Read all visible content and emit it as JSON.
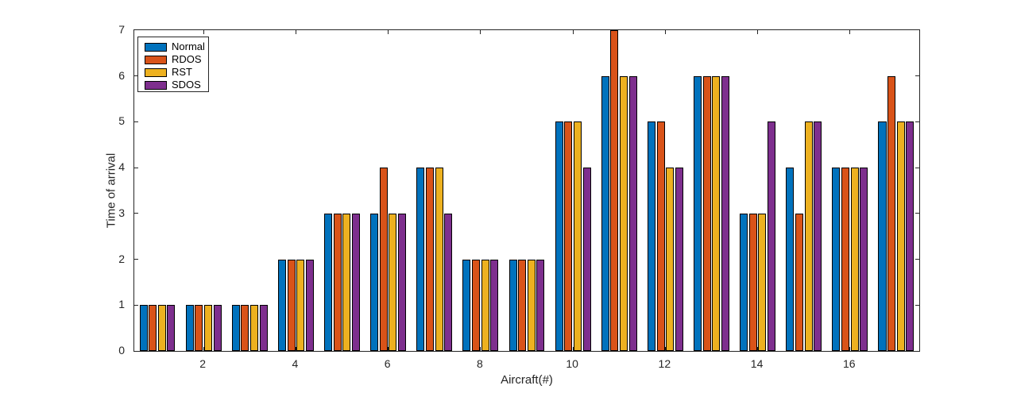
{
  "figure": {
    "background": "#ffffff",
    "axis_color": "#262626",
    "bar_edge_color": "#000000"
  },
  "chart_data": {
    "type": "bar",
    "title": "",
    "xlabel": "Aircraft(#)",
    "ylabel": "Time of arrival",
    "categories": [
      1,
      2,
      3,
      4,
      5,
      6,
      7,
      8,
      9,
      10,
      11,
      12,
      13,
      14,
      15,
      16,
      17
    ],
    "series": [
      {
        "name": "Normal",
        "color": "#0072BD",
        "values": [
          1,
          1,
          1,
          2,
          3,
          3,
          4,
          2,
          2,
          5,
          6,
          5,
          6,
          3,
          4,
          4,
          5
        ]
      },
      {
        "name": "RDOS",
        "color": "#D95319",
        "values": [
          1,
          1,
          1,
          2,
          3,
          4,
          4,
          2,
          2,
          5,
          7,
          5,
          6,
          3,
          3,
          4,
          6
        ]
      },
      {
        "name": "RST",
        "color": "#EDB120",
        "values": [
          1,
          1,
          1,
          2,
          3,
          3,
          4,
          2,
          2,
          5,
          6,
          4,
          6,
          3,
          5,
          4,
          5
        ]
      },
      {
        "name": "SDOS",
        "color": "#7E2F8E",
        "values": [
          1,
          1,
          1,
          2,
          3,
          3,
          3,
          2,
          2,
          4,
          6,
          4,
          6,
          5,
          5,
          4,
          5
        ]
      }
    ],
    "ylim": [
      0,
      7
    ],
    "yticks": [
      0,
      1,
      2,
      3,
      4,
      5,
      6,
      7
    ],
    "xticks": [
      2,
      4,
      6,
      8,
      10,
      12,
      14,
      16
    ],
    "grid": false,
    "legend_position": "top-left",
    "bar_group_width_ratio": 0.8
  }
}
